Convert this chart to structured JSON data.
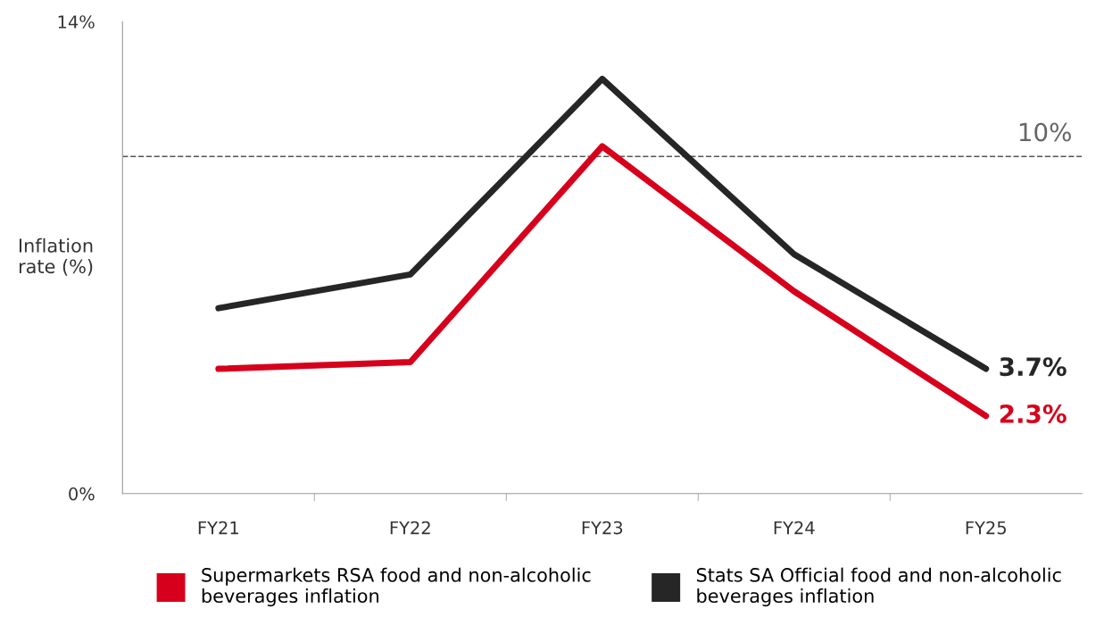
{
  "chart_data": {
    "type": "line",
    "ylabel": "Inflation rate (%)",
    "categories": [
      "FY21",
      "FY22",
      "FY23",
      "FY24",
      "FY25"
    ],
    "series": [
      {
        "name": "Supermarkets RSA food and non-alcoholic beverages inflation",
        "color": "#d6001c",
        "values": [
          3.7,
          3.9,
          10.3,
          6.0,
          2.3
        ],
        "value_labels": [
          null,
          null,
          null,
          null,
          "2.3%"
        ]
      },
      {
        "name": "Stats SA Official food and non-alcoholic beverages inflation",
        "color": "#262626",
        "values": [
          5.5,
          6.5,
          12.3,
          7.1,
          3.7
        ],
        "value_labels": [
          null,
          null,
          null,
          null,
          "3.7%"
        ]
      }
    ],
    "ylim": [
      0,
      14
    ],
    "yticks": [
      {
        "value": 0,
        "label": "0%"
      },
      {
        "value": 14,
        "label": "14%"
      }
    ],
    "ref_lines": [
      {
        "axis": "y",
        "value": 10,
        "label": "10%",
        "color": "#555555",
        "line_style": "dashed"
      }
    ],
    "grid": false,
    "legend": "bottom",
    "marker": "none",
    "line_style": "solid"
  }
}
